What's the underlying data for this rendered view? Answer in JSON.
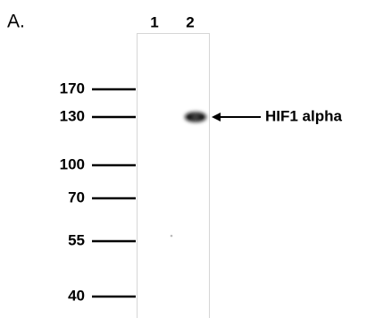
{
  "panel_label": "A.",
  "lanes": [
    "1",
    "2"
  ],
  "markers": [
    "170",
    "130",
    "100",
    "70",
    "55",
    "40"
  ],
  "band_label": "HIF1 alpha"
}
